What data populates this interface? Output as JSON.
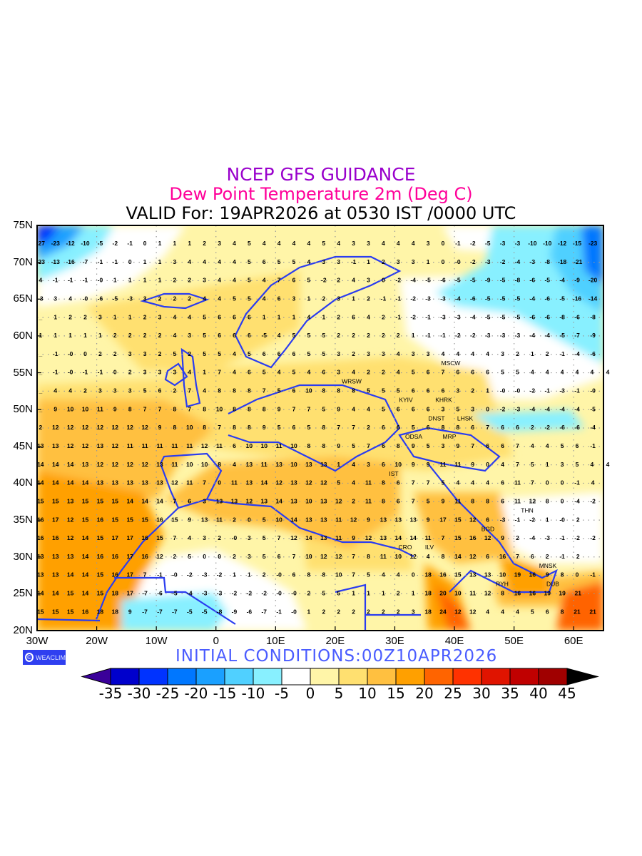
{
  "header": {
    "line1": "NCEP GFS GUIDANCE",
    "line2": "Dew Point Temperature 2m (Deg C)",
    "line3": "VALID For: 19APR2026 at 0530 IST /0000 UTC"
  },
  "axes": {
    "lat_labels": [
      "75N",
      "70N",
      "65N",
      "60N",
      "55N",
      "50N",
      "45N",
      "40N",
      "35N",
      "30N",
      "25N",
      "20N"
    ],
    "lon_labels": [
      "30W",
      "20W",
      "10W",
      "0",
      "10E",
      "20E",
      "30E",
      "40E",
      "50E",
      "60E"
    ]
  },
  "logo_text": "WEACLIM",
  "logo_symbol": "©",
  "initial_conditions": "INITIAL  CONDITIONS:00Z10APR2026",
  "colorbar": {
    "labels": [
      "-35",
      "-30",
      "-25",
      "-20",
      "-15",
      "-10",
      "-5",
      "0",
      "5",
      "10",
      "15",
      "20",
      "25",
      "30",
      "35",
      "40",
      "45"
    ],
    "colors": [
      "#3a0099",
      "#0000cc",
      "#0033ff",
      "#0077ff",
      "#1aa0ff",
      "#50d0ff",
      "#88f0ff",
      "#ffffff",
      "#fff5a8",
      "#ffe070",
      "#ffc040",
      "#ffa000",
      "#ff6400",
      "#ff3200",
      "#e01400",
      "#c00000",
      "#a00000",
      "#000000"
    ]
  },
  "cities": [
    {
      "name": "MSCW"
    },
    {
      "name": "WRSW"
    },
    {
      "name": "KYIV"
    },
    {
      "name": "KHRK"
    },
    {
      "name": "LHSK"
    },
    {
      "name": "DNST"
    },
    {
      "name": "MRP"
    },
    {
      "name": "ODSA"
    },
    {
      "name": "IST"
    },
    {
      "name": "ILV"
    },
    {
      "name": "CRO"
    },
    {
      "name": "BGD"
    },
    {
      "name": "THN"
    },
    {
      "name": "RYH"
    },
    {
      "name": "MNSK"
    },
    {
      "name": "DUB"
    }
  ],
  "grid_values": [
    "-27 -23 -12 -10 -5 -2 -1 0 1 1 1 2 3 4 5 4 4 4 4 5 4 3 3 4 4 4 3 0 -1 -2 -5 -3 -3 -10 -10 -12 -15 -23",
    "-23 -13 -16 -7 -1 -1 0 1 1 3 4 4 4 4 5 6 5 5 4 3 3 -1 1 2 3 3 1 0 -0 -2 -3 -2 -4 -3 -8 -18 -21",
    "4 -1 -1 -1 -0 1 1 1 1 2 2 3 4 4 5 4 7 6 5 -2 2 4 3 0 -2 -4 -5 -6 -5 -5 -9 -5 -8 -6 -5 -4 -9 -20",
    "-3 3 4 -0 -6 -5 -3 3 2 2 2 4 4 5 5 4 6 3 1 2 3 1 2 -1 -1 -2 -3 -3 -4 -6 -5 -5 -5 -4 -6 -5 -16 -14",
    "_ 1 2 2 3 1 1 2 3 4 4 5 6 6 6 1 1 1 4 1 2 6 4 2 -1 -2 -1 -3 -3 -4 -5 -5 -5 -6 -6 -8 -6 -8",
    "1 1 1 1 1 2 2 2 2 4 3 5 6 6 6 -5 4 5 5 5 2 2 2 2 2 1 -1 -1 -2 -2 -3 -3 -3 -4 -4 -5 -7 -9",
    "_ -1 -0 0 2 2 3 3 2 5 2 5 5 4 5 6 6 6 5 5 3 2 3 3 4 3 3 4 4 4 4 3 2 1 2 -1 -4 -6",
    "_ -1 -0 -1 -1 0 2 3 3 3 4 1 7 4 6 5 4 5 4 6 3 4 2 2 4 5 6 7 6 6 6 5 5 4 4 4 4 4 4",
    "_ 4 4 2 3 3 3 5 6 2 7 4 8 8 8 7 5 6 10 8 8 8 5 5 5 6 6 6 3 2 1 -0 -0 -2 -1 -3 -1 -0",
    "_ 9 10 10 11 9 8 7 7 8 7 8 10 8 8 8 9 7 7 5 9 4 4 5 6 6 6 3 5 3 0 -2 -3 -4 -4 -4 -4 -5",
    "2 12 12 12 12 12 12 12 9 8 10 8 7 8 8 9 5 6 5 8 7 7 2 6 6 5 6 8 8 6 7 6 6 2 -2 -6 -6 -4",
    "13 13 12 12 13 12 11 11 11 11 11 12 11 6 10 10 11 10 8 8 9 5 7 6 8 9 5 3 9 7 6 6 7 4 4 5 6 -1",
    "14 14 14 13 12 12 12 12 13 11 10 10 8 4 13 11 13 10 13 13 1 4 3 6 10 9 9 11 11 9 0 4 7 5 1 3 5 4 4",
    "14 14 14 14 13 13 13 13 13 12 11 7 0 11 13 14 12 13 12 12 5 4 11 8 6 7 7 5 4 4 4 6 11 7 0 0 -1 4",
    "15 15 13 15 15 15 14 14 14 7 6 3 13 13 12 13 14 13 10 13 12 2 11 8 6 7 5 9 11 8 8 6 11 12 8 0 -4 -2",
    "16 17 12 15 16 15 15 15 16 15 9 13 11 2 0 5 10 14 13 13 11 12 9 13 13 13 9 17 15 12 6 -3 -1 -2 1 -0 2",
    "16 16 12 14 15 17 17 16 15 7 4 3 2 -0 3 5 7 12 14 13 11 9 12 13 14 14 11 7 15 16 12 9 2 -4 -3 -1 -2 -2",
    "13 13 13 14 16 16 17 16 12 2 5 0 0 2 3 5 6 7 10 12 12 7 8 11 10 12 4 8 14 12 6 16 7 6 2 -1 2",
    "13 13 14 14 15 16 17 7 -1 -0 -2 -3 -2 1 1 2 -0 6 8 8 10 7 5 4 4 0 18 16 15 13 13 10 19 16 9 8 0 -1",
    "14 14 15 14 15 18 17 -7 -6 -5 -4 -3 -3 -2 -2 -2 -0 -0 2 5 5 1 1 1 2 1 18 20 10 11 12 8 16 16 19 19 21",
    "15 15 15 16 18 18 9 -7 -7 -7 -5 -5 -8 -9 -6 -7 -1 -0 1 2 2 2 2 2 2 3 18 24 12 12 4 4 4 5 6 8 21 21"
  ]
}
